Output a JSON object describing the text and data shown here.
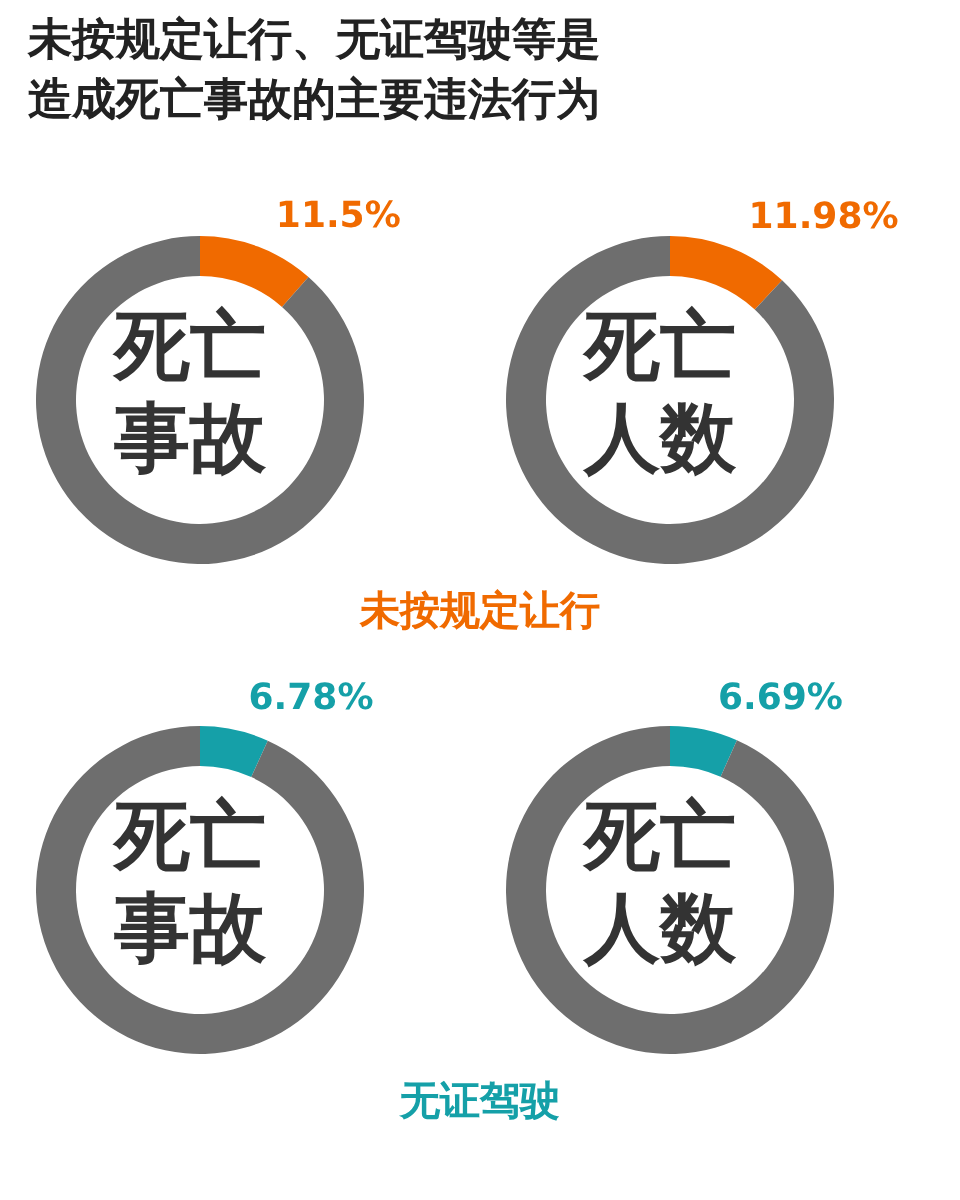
{
  "chart_data": [
    {
      "type": "donut",
      "title": "死亡事故",
      "annotations": [
        "未按规定让行、无证驾驶等是造成死亡事故的主要违法行为",
        "未按规定让行"
      ],
      "categories": [
        null,
        null
      ],
      "values": [
        11.5,
        88.5
      ],
      "colors": [
        "#f06a00",
        "#6e6e6e"
      ],
      "value_labels": [
        "11.5%",
        null
      ]
    },
    {
      "type": "donut",
      "title": "死亡人数",
      "categories": [
        null,
        null
      ],
      "values": [
        11.98,
        88.02
      ],
      "colors": [
        "#f06a00",
        "#6e6e6e"
      ],
      "value_labels": [
        "11.98%",
        null
      ]
    },
    {
      "type": "donut",
      "title": "死亡事故",
      "annotations": [
        "无证驾驶"
      ],
      "categories": [
        null,
        null
      ],
      "values": [
        6.78,
        93.22
      ],
      "colors": [
        "#15a0a8",
        "#6e6e6e"
      ],
      "value_labels": [
        "6.78%",
        null
      ]
    },
    {
      "type": "donut",
      "title": "死亡人数",
      "categories": [
        null,
        null
      ],
      "values": [
        6.69,
        93.31
      ],
      "colors": [
        "#15a0a8",
        "#6e6e6e"
      ],
      "value_labels": [
        "6.69%",
        null
      ]
    }
  ]
}
